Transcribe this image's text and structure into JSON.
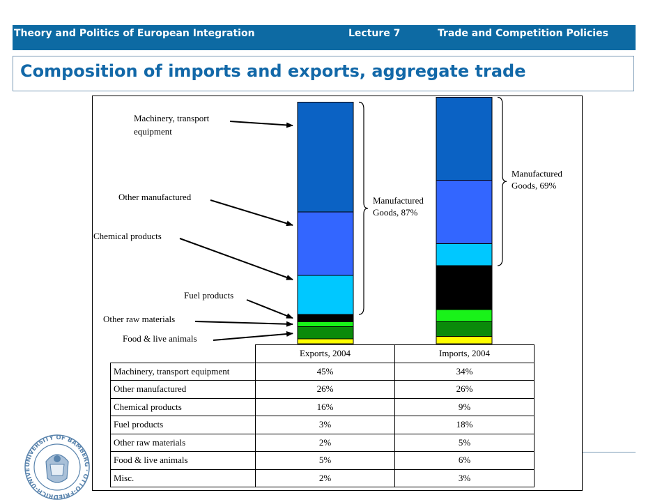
{
  "header": {
    "course": "Theory and Politics of European Integration",
    "lecture": "Lecture 7",
    "topic": "Trade and Competition Policies"
  },
  "page_title": "Composition of imports and exports, aggregate trade",
  "chart_data": {
    "type": "bar",
    "stacked": true,
    "categories": [
      "Exports, 2004",
      "Imports, 2004"
    ],
    "series": [
      {
        "name": "Machinery, transport equipment",
        "values": [
          45,
          34
        ],
        "color": "#0b62c4"
      },
      {
        "name": "Other manufactured",
        "values": [
          26,
          26
        ],
        "color": "#3366ff"
      },
      {
        "name": "Chemical products",
        "values": [
          16,
          9
        ],
        "color": "#00c8ff"
      },
      {
        "name": "Fuel products",
        "values": [
          3,
          18
        ],
        "color": "#000000"
      },
      {
        "name": "Other raw materials",
        "values": [
          2,
          5
        ],
        "color": "#19f219"
      },
      {
        "name": "Food & live animals",
        "values": [
          5,
          6
        ],
        "color": "#0a8a0a"
      },
      {
        "name": "Misc.",
        "values": [
          2,
          3
        ],
        "color": "#ffff00"
      }
    ],
    "annotations": {
      "machinery": [
        "Machinery, transport",
        "equipment"
      ],
      "other_manufactured": "Other manufactured",
      "chemical": "Chemical products",
      "fuel": "Fuel products",
      "raw": "Other raw materials",
      "food": "Food & live animals"
    },
    "braces": [
      {
        "bar": 0,
        "label": [
          "Manufactured",
          "Goods, 87%"
        ]
      },
      {
        "bar": 1,
        "label": [
          "Manufactured",
          "Goods, 69%"
        ]
      }
    ],
    "unit": "%"
  },
  "table": {
    "headers": [
      "Exports, 2004",
      "Imports, 2004"
    ],
    "rows": [
      {
        "label": "Machinery, transport equipment",
        "exports": "45%",
        "imports": "34%"
      },
      {
        "label": "Other manufactured",
        "exports": "26%",
        "imports": "26%"
      },
      {
        "label": "Chemical products",
        "exports": "16%",
        "imports": "9%"
      },
      {
        "label": "Fuel products",
        "exports": "3%",
        "imports": "18%"
      },
      {
        "label": "Other raw materials",
        "exports": "2%",
        "imports": "5%"
      },
      {
        "label": "Food & live animals",
        "exports": "5%",
        "imports": "6%"
      },
      {
        "label": "Misc.",
        "exports": "2%",
        "imports": "3%"
      }
    ]
  },
  "logo": {
    "text": "UNIVERSITY OF BAMBERG · OTTO-FRIEDRICH-UNIVERSITÄT BAMBERG"
  },
  "colors": {
    "header_bg": "#0d6aa3",
    "title": "#1268a8"
  }
}
